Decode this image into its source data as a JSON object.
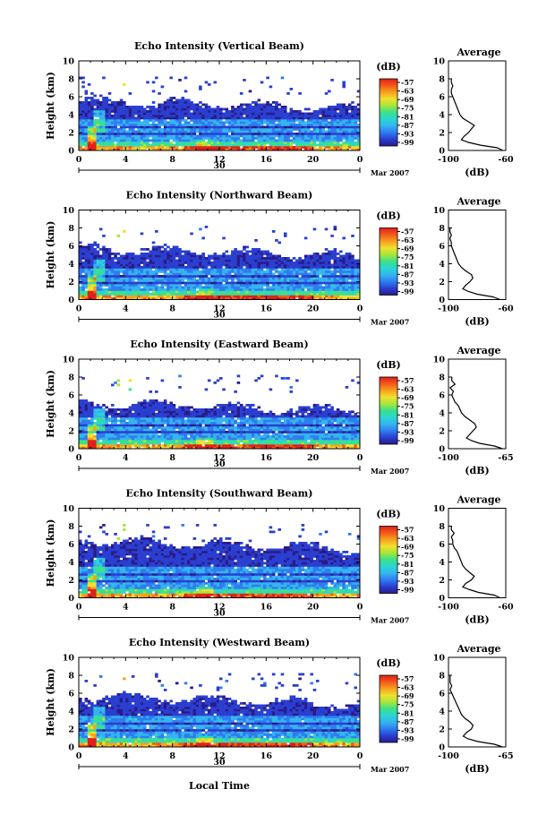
{
  "chart_data": [
    {
      "type": "heatmap",
      "title": "Echo Intensity (Vertical Beam)",
      "ylabel": "Height (km)",
      "xlim": [
        0,
        24
      ],
      "ylim": [
        0,
        10
      ],
      "x_ticks": [
        "0",
        "4",
        "8",
        "12",
        "16",
        "20",
        "0"
      ],
      "y_ticks": [
        "0",
        "2",
        "4",
        "6",
        "8",
        "10"
      ],
      "date_label": "30",
      "date_suffix": "Mar 2007",
      "colorbar": {
        "label": "(dB)",
        "ticks": [
          "-57",
          "-63",
          "-69",
          "-75",
          "-81",
          "-87",
          "-93",
          "-99"
        ]
      },
      "echo_top_km": 5.6,
      "profile": {
        "title": "Average",
        "xlabel": "(dB)",
        "x_ticks": [
          "-100",
          "-60"
        ],
        "xlim": [
          -100,
          -60
        ],
        "ylim": [
          0,
          10
        ],
        "height_km": [
          0,
          0.3,
          0.6,
          0.9,
          1.2,
          1.6,
          2.0,
          2.4,
          2.8,
          3.2,
          3.6,
          4.0,
          4.4,
          4.8,
          5.2,
          5.6,
          6.0,
          6.4,
          6.8,
          7.2,
          7.6,
          8.0
        ],
        "db": [
          -62,
          -66,
          -78,
          -86,
          -91,
          -89,
          -86,
          -84,
          -82,
          -86,
          -90,
          -92,
          -93,
          -94,
          -95,
          -96,
          -97,
          -98,
          -98,
          -97,
          -98,
          -98
        ]
      }
    },
    {
      "type": "heatmap",
      "title": "Echo Intensity (Northward Beam)",
      "ylabel": "Height (km)",
      "xlim": [
        0,
        24
      ],
      "ylim": [
        0,
        10
      ],
      "x_ticks": [
        "0",
        "4",
        "8",
        "12",
        "16",
        "20",
        "0"
      ],
      "y_ticks": [
        "0",
        "2",
        "4",
        "6",
        "8",
        "10"
      ],
      "date_label": "30",
      "date_suffix": "Mar 2007",
      "colorbar": {
        "label": "(dB)",
        "ticks": [
          "-57",
          "-63",
          "-69",
          "-75",
          "-81",
          "-87",
          "-93",
          "-99"
        ]
      },
      "echo_top_km": 5.8,
      "profile": {
        "title": "Average",
        "xlabel": "(dB)",
        "x_ticks": [
          "-100",
          "-60"
        ],
        "xlim": [
          -100,
          -60
        ],
        "ylim": [
          0,
          10
        ],
        "height_km": [
          0,
          0.3,
          0.6,
          0.9,
          1.2,
          1.6,
          2.0,
          2.4,
          2.8,
          3.2,
          3.6,
          4.0,
          4.4,
          4.8,
          5.2,
          5.6,
          6.0,
          6.4,
          6.8,
          7.2,
          7.6,
          8.0
        ],
        "db": [
          -64,
          -69,
          -80,
          -86,
          -90,
          -88,
          -85,
          -83,
          -84,
          -88,
          -91,
          -93,
          -94,
          -95,
          -96,
          -97,
          -98,
          -98,
          -99,
          -98,
          -99,
          -99
        ]
      }
    },
    {
      "type": "heatmap",
      "title": "Echo Intensity (Eastward Beam)",
      "ylabel": "Height (km)",
      "xlim": [
        0,
        24
      ],
      "ylim": [
        0,
        10
      ],
      "x_ticks": [
        "0",
        "4",
        "8",
        "12",
        "16",
        "20",
        "0"
      ],
      "y_ticks": [
        "0",
        "2",
        "4",
        "6",
        "8",
        "10"
      ],
      "date_label": "30",
      "date_suffix": "Mar 2007",
      "colorbar": {
        "label": "(dB)",
        "ticks": [
          "-57",
          "-63",
          "-69",
          "-75",
          "-81",
          "-87",
          "-93",
          "-99"
        ]
      },
      "echo_top_km": 5.2,
      "profile": {
        "title": "Average",
        "xlabel": "(dB)",
        "x_ticks": [
          "-100",
          "-65"
        ],
        "xlim": [
          -100,
          -65
        ],
        "ylim": [
          0,
          10
        ],
        "height_km": [
          0,
          0.3,
          0.6,
          0.9,
          1.2,
          1.6,
          2.0,
          2.4,
          2.8,
          3.2,
          3.6,
          4.0,
          4.4,
          4.8,
          5.2,
          5.6,
          6.0,
          6.4,
          6.8,
          7.2,
          7.6,
          8.0
        ],
        "db": [
          -67,
          -72,
          -81,
          -86,
          -89,
          -87,
          -85,
          -83,
          -84,
          -87,
          -90,
          -92,
          -93,
          -94,
          -96,
          -97,
          -98,
          -97,
          -99,
          -96,
          -98,
          -98
        ]
      }
    },
    {
      "type": "heatmap",
      "title": "Echo Intensity (Southward Beam)",
      "ylabel": "Height (km)",
      "xlim": [
        0,
        24
      ],
      "ylim": [
        0,
        10
      ],
      "x_ticks": [
        "0",
        "4",
        "8",
        "12",
        "16",
        "20",
        "0"
      ],
      "y_ticks": [
        "0",
        "2",
        "4",
        "6",
        "8",
        "10"
      ],
      "date_label": "30",
      "date_suffix": "Mar 2007",
      "colorbar": {
        "label": "(dB)",
        "ticks": [
          "-57",
          "-63",
          "-69",
          "-75",
          "-81",
          "-87",
          "-93",
          "-99"
        ]
      },
      "echo_top_km": 6.4,
      "profile": {
        "title": "Average",
        "xlabel": "(dB)",
        "x_ticks": [
          "-100",
          "-60"
        ],
        "xlim": [
          -100,
          -60
        ],
        "ylim": [
          0,
          10
        ],
        "height_km": [
          0,
          0.3,
          0.6,
          0.9,
          1.2,
          1.6,
          2.0,
          2.4,
          2.8,
          3.2,
          3.6,
          4.0,
          4.4,
          4.8,
          5.2,
          5.6,
          6.0,
          6.4,
          6.8,
          7.2,
          7.6,
          8.0
        ],
        "db": [
          -64,
          -68,
          -79,
          -85,
          -90,
          -88,
          -84,
          -82,
          -85,
          -88,
          -90,
          -91,
          -92,
          -93,
          -94,
          -96,
          -97,
          -97,
          -98,
          -96,
          -98,
          -98
        ]
      }
    },
    {
      "type": "heatmap",
      "title": "Echo Intensity (Westward Beam)",
      "ylabel": "Height (km)",
      "xlabel": "Local Time",
      "xlim": [
        0,
        24
      ],
      "ylim": [
        0,
        10
      ],
      "x_ticks": [
        "0",
        "4",
        "8",
        "12",
        "16",
        "20",
        "0"
      ],
      "y_ticks": [
        "0",
        "2",
        "4",
        "6",
        "8",
        "10"
      ],
      "date_label": "30",
      "date_suffix": "Mar 2007",
      "colorbar": {
        "label": "(dB)",
        "ticks": [
          "-57",
          "-63",
          "-69",
          "-75",
          "-81",
          "-87",
          "-93",
          "-99"
        ]
      },
      "echo_top_km": 5.7,
      "profile": {
        "title": "Average",
        "xlabel": "(dB)",
        "x_ticks": [
          "-100",
          "-65"
        ],
        "xlim": [
          -100,
          -65
        ],
        "ylim": [
          0,
          10
        ],
        "height_km": [
          0,
          0.3,
          0.6,
          0.9,
          1.2,
          1.6,
          2.0,
          2.4,
          2.8,
          3.2,
          3.6,
          4.0,
          4.4,
          4.8,
          5.2,
          5.6,
          6.0,
          6.4,
          6.8,
          7.2,
          7.6,
          8.0
        ],
        "db": [
          -67,
          -72,
          -82,
          -88,
          -91,
          -89,
          -86,
          -85,
          -87,
          -90,
          -92,
          -93,
          -94,
          -95,
          -96,
          -97,
          -98,
          -99,
          -98,
          -99,
          -99,
          -99
        ]
      }
    }
  ],
  "colormap": [
    "#2a1b8a",
    "#2a3fd0",
    "#2f7cf0",
    "#34b4f0",
    "#2ad6d0",
    "#3ce08a",
    "#a6e63a",
    "#f0e030",
    "#f7a020",
    "#f25a1a",
    "#e0201a"
  ]
}
